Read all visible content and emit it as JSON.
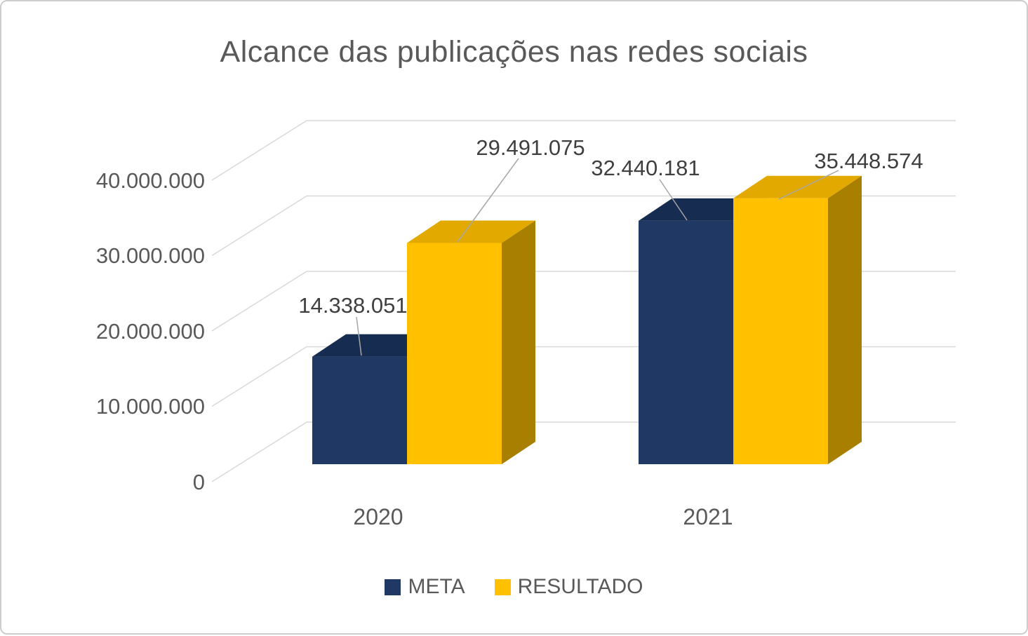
{
  "chart_data": {
    "type": "bar",
    "projection": "3d",
    "title": "Alcance das publicações nas redes sociais",
    "categories": [
      "2020",
      "2021"
    ],
    "series": [
      {
        "name": "META",
        "color": "#1F3864",
        "color_top": "#162C50",
        "color_side": "#132644",
        "values": [
          14338051,
          32440181
        ],
        "labels": [
          "14.338.051",
          "32.440.181"
        ]
      },
      {
        "name": "RESULTADO",
        "color": "#FFC000",
        "color_top": "#E2AA00",
        "color_side": "#A97F00",
        "values": [
          29491075,
          35448574
        ],
        "labels": [
          "29.491.075",
          "35.448.574"
        ]
      }
    ],
    "y_ticks": [
      "0",
      "10.000.000",
      "20.000.000",
      "30.000.000",
      "40.000.000"
    ],
    "ylim": [
      0,
      40000000
    ],
    "grid": true,
    "legend_position": "bottom",
    "colors": {
      "grid": "#D9D9D9",
      "leader": "#A6A6A6",
      "axis_text": "#595959",
      "data_label": "#3F3F3F",
      "background": "#FFFFFF",
      "border": "#CDCDCD"
    }
  }
}
